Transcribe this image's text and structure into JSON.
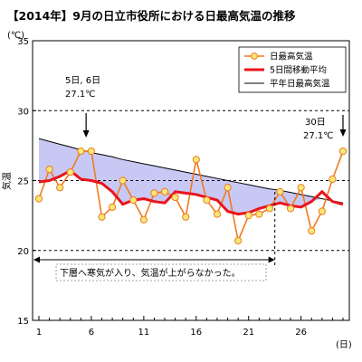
{
  "chart_data": {
    "type": "line",
    "title": "【2014年】9月の日立市役所における日最高気温の推移",
    "unit_label": "(℃)",
    "ylabel": "気温",
    "x_unit_label": "(日)",
    "ylim": [
      15,
      35
    ],
    "yticks": [
      15,
      20,
      25,
      30,
      35
    ],
    "xlim": [
      1,
      30
    ],
    "xticks": [
      1,
      6,
      11,
      16,
      21,
      26
    ],
    "gridlines_dashed": [
      20,
      25,
      30
    ],
    "legend_position": "top-right",
    "x": [
      1,
      2,
      3,
      4,
      5,
      6,
      7,
      8,
      9,
      10,
      11,
      12,
      13,
      14,
      15,
      16,
      17,
      18,
      19,
      20,
      21,
      22,
      23,
      24,
      25,
      26,
      27,
      28,
      29,
      30
    ],
    "series": [
      {
        "name": "日最高気温",
        "color": "#f07a1e",
        "marker_fill": "#f5e87a",
        "values": [
          23.7,
          25.8,
          24.5,
          25.6,
          27.1,
          27.1,
          22.4,
          23.1,
          25.0,
          23.6,
          22.2,
          24.1,
          24.2,
          23.8,
          22.4,
          26.5,
          23.6,
          22.6,
          24.5,
          20.7,
          22.5,
          22.6,
          23.0,
          24.2,
          23.0,
          24.5,
          21.4,
          22.8,
          25.1,
          27.1
        ]
      },
      {
        "name": "5日間移動平均",
        "color": "#e8141c",
        "values": [
          24.9,
          25.0,
          25.3,
          25.7,
          25.1,
          25.0,
          24.8,
          24.2,
          23.3,
          23.6,
          23.7,
          23.5,
          23.4,
          24.2,
          24.1,
          24.0,
          23.8,
          23.6,
          22.8,
          22.6,
          22.7,
          23.0,
          23.2,
          23.4,
          23.2,
          23.1,
          23.5,
          24.2,
          23.5,
          23.3
        ]
      },
      {
        "name": "平年日最高気温",
        "color": "#000000",
        "values": [
          28.0,
          27.8,
          27.6,
          27.4,
          27.2,
          27.0,
          26.85,
          26.7,
          26.5,
          26.35,
          26.2,
          26.05,
          25.9,
          25.75,
          25.6,
          25.45,
          25.3,
          25.15,
          25.0,
          24.85,
          24.7,
          24.55,
          24.4,
          24.3,
          24.15,
          24.0,
          23.85,
          23.7,
          23.55,
          23.4
        ]
      }
    ],
    "shaded_region": {
      "between": [
        "平年日最高気温",
        "5日間移動平均"
      ],
      "color": "#c8c8f4"
    },
    "annotations": [
      {
        "id": "early",
        "lines": [
          "5日, 6日",
          "27.1℃"
        ]
      },
      {
        "id": "late",
        "lines": [
          "30日",
          "27.1℃"
        ]
      },
      {
        "id": "period",
        "text": "下層へ寒気が入り、気温が上がらなかった。"
      }
    ]
  }
}
